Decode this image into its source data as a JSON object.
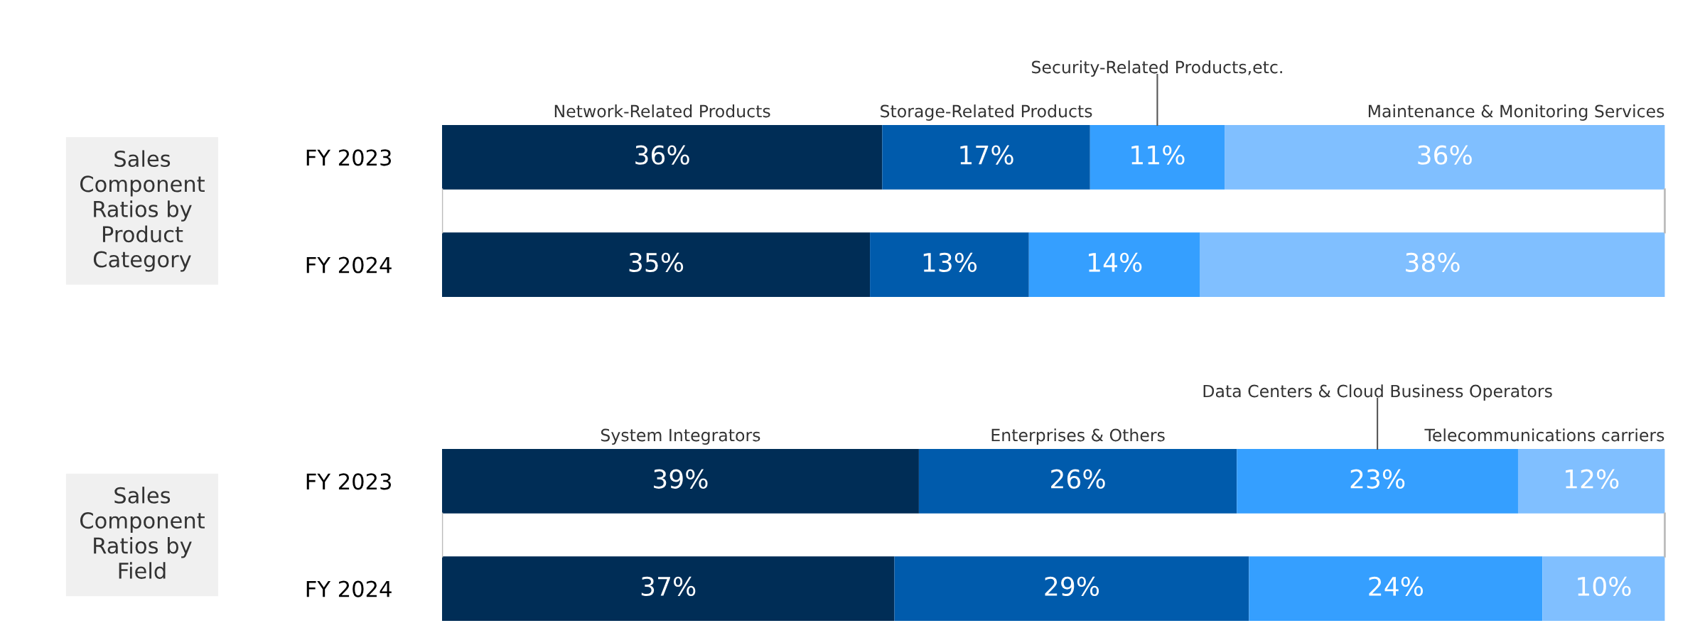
{
  "chart_data": [
    {
      "type": "bar",
      "orientation": "horizontal",
      "stacked": true,
      "title": "Sales Component Ratios by Product Category",
      "categories": [
        "FY 2023",
        "FY 2024"
      ],
      "tick_labels": "y",
      "series": [
        {
          "name": "Network-Related Products",
          "color": "#002d56",
          "values": [
            36,
            35
          ],
          "value_labels": [
            "36%",
            "35%"
          ]
        },
        {
          "name": "Storage-Related Products",
          "color": "#005bac",
          "values": [
            17,
            13
          ],
          "value_labels": [
            "17%",
            "13%"
          ]
        },
        {
          "name": "Security-Related Products,etc.",
          "color": "#359fff",
          "values": [
            11,
            14
          ],
          "value_labels": [
            "11%",
            "14%"
          ]
        },
        {
          "name": "Maintenance & Monitoring Services",
          "color": "#80bfff",
          "values": [
            36,
            38
          ],
          "value_labels": [
            "36%",
            "38%"
          ]
        }
      ]
    },
    {
      "type": "bar",
      "orientation": "horizontal",
      "stacked": true,
      "title": "Sales Component Ratios by Field",
      "categories": [
        "FY 2023",
        "FY 2024"
      ],
      "tick_labels": "y",
      "series": [
        {
          "name": "System Integrators",
          "color": "#002d56",
          "values": [
            39,
            37
          ],
          "value_labels": [
            "39%",
            "37%"
          ]
        },
        {
          "name": "Enterprises & Others",
          "color": "#005bac",
          "values": [
            26,
            29
          ],
          "value_labels": [
            "26%",
            "29%"
          ]
        },
        {
          "name": "Data Centers & Cloud Business Operators",
          "color": "#359fff",
          "values": [
            23,
            24
          ],
          "value_labels": [
            "23%",
            "24%"
          ]
        },
        {
          "name": "Telecommunications carriers",
          "color": "#80bfff",
          "values": [
            12,
            10
          ],
          "value_labels": [
            "12%",
            "10%"
          ]
        }
      ]
    }
  ]
}
